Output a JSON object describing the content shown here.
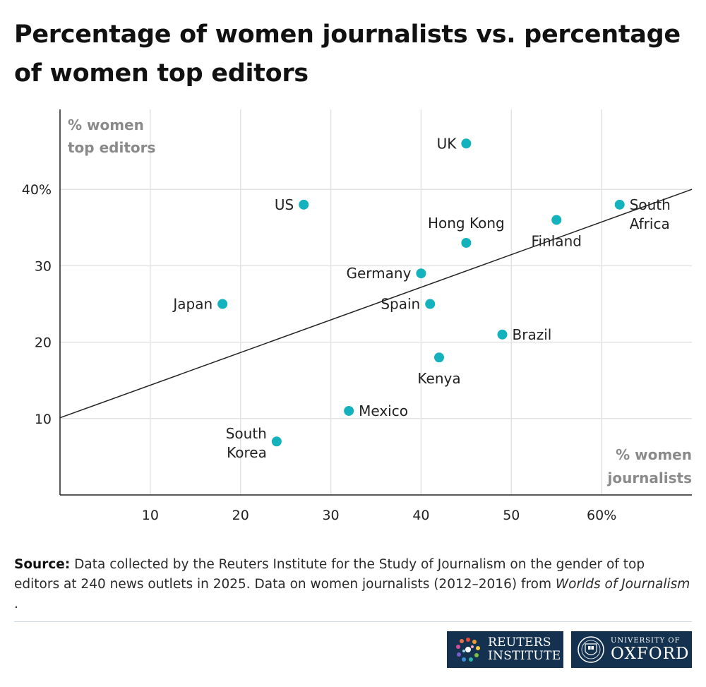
{
  "title": "Percentage of women journalists vs. percentage of women top editors",
  "chart_data": {
    "type": "scatter",
    "title": "Percentage of women journalists vs. percentage of women top editors",
    "xlabel": [
      "% women",
      "journalists"
    ],
    "ylabel": [
      "% women",
      "top editors"
    ],
    "xlim": [
      0,
      70
    ],
    "ylim": [
      0,
      50
    ],
    "x_ticks": [
      10,
      20,
      30,
      40,
      50,
      60
    ],
    "x_tick_labels": [
      "10",
      "20",
      "30",
      "40",
      "50",
      "60%"
    ],
    "y_ticks": [
      10,
      20,
      30,
      40
    ],
    "y_tick_labels": [
      "10",
      "20",
      "30",
      "40%"
    ],
    "grid": true,
    "points": [
      {
        "label": [
          "UK"
        ],
        "x": 45,
        "y": 46,
        "side": "left"
      },
      {
        "label": [
          "US"
        ],
        "x": 27,
        "y": 38,
        "side": "left"
      },
      {
        "label": [
          "South",
          "Africa"
        ],
        "x": 62,
        "y": 38,
        "side": "right"
      },
      {
        "label": [
          "Finland"
        ],
        "x": 55,
        "y": 36,
        "side": "below"
      },
      {
        "label": [
          "Hong Kong"
        ],
        "x": 45,
        "y": 33,
        "side": "above"
      },
      {
        "label": [
          "Germany"
        ],
        "x": 40,
        "y": 29,
        "side": "left"
      },
      {
        "label": [
          "Japan"
        ],
        "x": 18,
        "y": 25,
        "side": "left"
      },
      {
        "label": [
          "Spain"
        ],
        "x": 41,
        "y": 25,
        "side": "left"
      },
      {
        "label": [
          "Brazil"
        ],
        "x": 49,
        "y": 21,
        "side": "right"
      },
      {
        "label": [
          "Kenya"
        ],
        "x": 42,
        "y": 18,
        "side": "below"
      },
      {
        "label": [
          "Mexico"
        ],
        "x": 32,
        "y": 11,
        "side": "right"
      },
      {
        "label": [
          "South",
          "Korea"
        ],
        "x": 24,
        "y": 7,
        "side": "left"
      }
    ],
    "trendline": {
      "x": [
        0,
        70
      ],
      "y": [
        10.1,
        40
      ]
    }
  },
  "source": {
    "label": "Source:",
    "text": "Data collected by the Reuters Institute for the Study of Journalism on the gender of top editors at 240 news outlets in 2025. Data on women journalists (2012–2016) from",
    "italic": "Worlds of Journalism",
    "end": "."
  },
  "logos": {
    "reuters": [
      "REUTERS",
      "INSTITUTE"
    ],
    "oxford_small": "UNIVERSITY OF",
    "oxford_big": "OXFORD"
  },
  "colors": {
    "dot": "#13b2bd",
    "logo_bg": "#14314f"
  }
}
